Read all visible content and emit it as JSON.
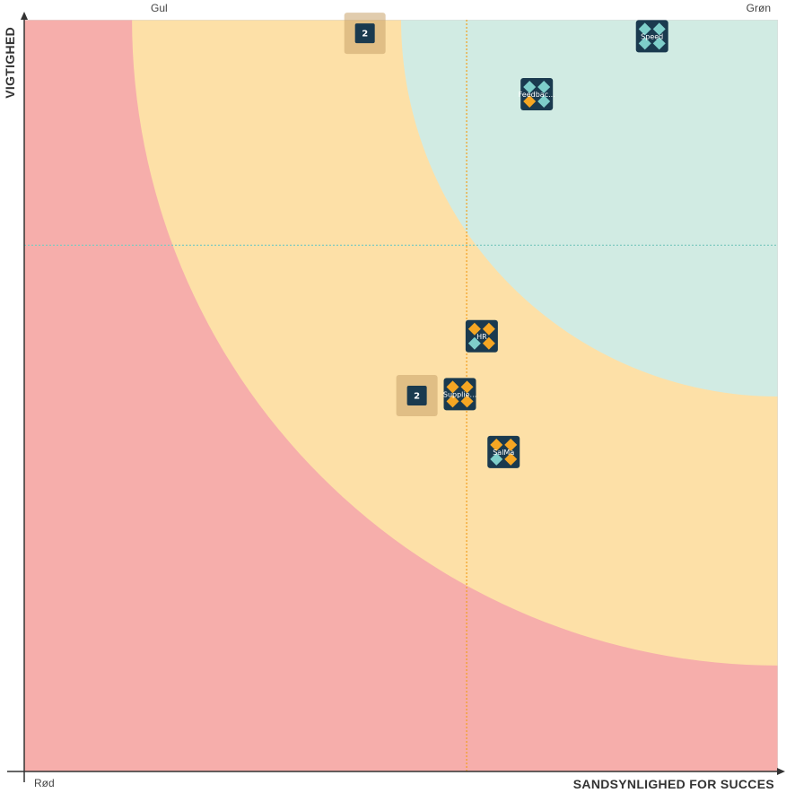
{
  "chart_data": {
    "type": "scatter",
    "xlabel": "SANDSYNLIGHED FOR SUCCES",
    "ylabel": "VIGTIGHED",
    "xlim": [
      0,
      100
    ],
    "ylim": [
      0,
      100
    ],
    "zones": [
      {
        "name": "Rød",
        "color": "#f6aeab",
        "label_position": "bottom-left"
      },
      {
        "name": "Gul",
        "color": "#fde0a7",
        "label_position": "top-left",
        "outer_radius": 85.7
      },
      {
        "name": "Grøn",
        "color": "#d1ebe3",
        "label_position": "top-right",
        "outer_radius": 50
      }
    ],
    "reference_lines": {
      "x": 58.7,
      "x_color": "#f2a01f",
      "y": 70,
      "y_color": "#7fcac0"
    },
    "points": [
      {
        "label": "Speed",
        "x": 83.3,
        "y": 97.8,
        "colors": [
          "#7ececa",
          "#7ececa",
          "#7ececa",
          "#7ececa"
        ]
      },
      {
        "label": "Feedbac...",
        "x": 68,
        "y": 90.1,
        "colors": [
          "#7ececa",
          "#7ececa",
          "#f5a623",
          "#7ececa"
        ]
      },
      {
        "label": "HR",
        "x": 60.7,
        "y": 57.9,
        "colors": [
          "#f5a623",
          "#f5a623",
          "#7ececa",
          "#f5a623"
        ]
      },
      {
        "label": "Supplie...",
        "x": 57.8,
        "y": 50.2,
        "colors": [
          "#f5a623",
          "#f5a623",
          "#f5a623",
          "#f5a623"
        ]
      },
      {
        "label": "SalMa",
        "x": 63.6,
        "y": 42.5,
        "colors": [
          "#f5a623",
          "#f5a623",
          "#7ececa",
          "#f5a623"
        ]
      }
    ],
    "clusters": [
      {
        "count": "2",
        "x": 45.2,
        "y": 98.2
      },
      {
        "count": "2",
        "x": 52.1,
        "y": 50.0
      }
    ],
    "grid": false
  }
}
